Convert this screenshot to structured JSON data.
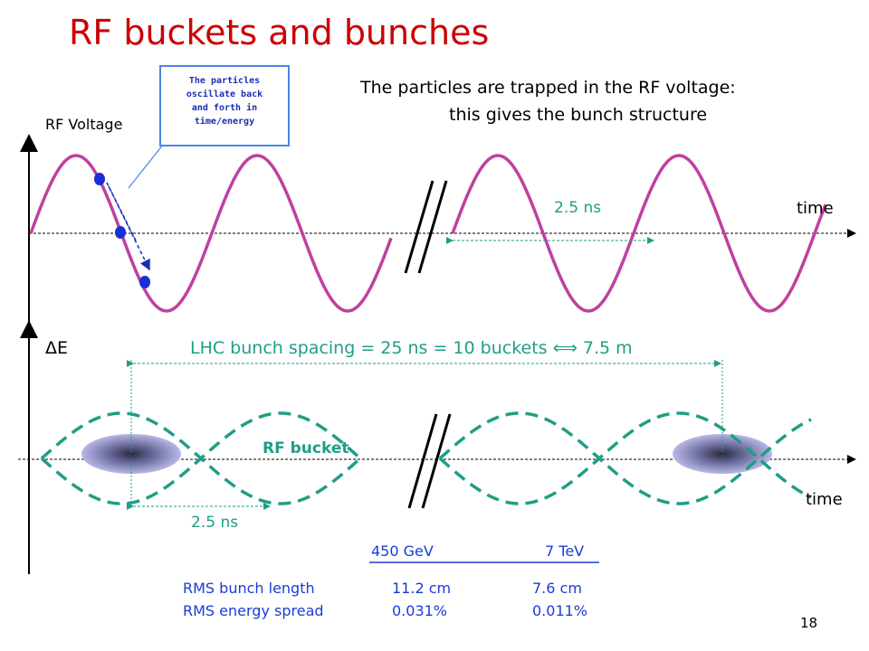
{
  "title": "RF buckets and bunches",
  "callout": "The particles\noscillate back\nand forth in\ntime/energy",
  "headline_line1": "The particles are trapped in the RF voltage:",
  "headline_line2": "this gives the bunch structure",
  "rf_voltage_label": "RF Voltage",
  "upper_period_label": "2.5 ns",
  "upper_time_label": "time",
  "delta_e_label": "ΔE",
  "spacing_label": "LHC bunch spacing = 25 ns = 10 buckets ⟺ 7.5 m",
  "rf_bucket_label": "RF bucket",
  "lower_period_label": "2.5 ns",
  "lower_time_label": "time",
  "table": {
    "col1": "450 GeV",
    "col2": "7 TeV",
    "rows": [
      {
        "label": "RMS bunch length",
        "v1": "11.2 cm",
        "v2": "7.6 cm"
      },
      {
        "label": "RMS energy spread",
        "v1": "0.031%",
        "v2": "0.011%"
      }
    ]
  },
  "page_number": "18",
  "colors": {
    "title": "#cc0000",
    "wave": "#c040a0",
    "bucket": "#1f9e86",
    "text_blue": "#1a3cd6",
    "callout_border": "#4a86e8",
    "dot": "#1a2fd6"
  }
}
